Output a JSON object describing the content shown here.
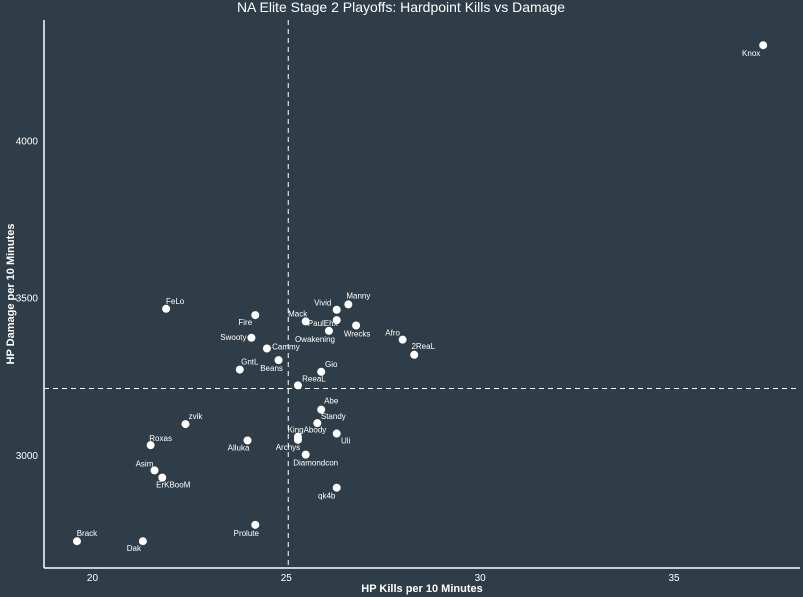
{
  "chart_data": {
    "type": "scatter",
    "title": "NA Elite Stage 2 Playoffs: Hardpoint Kills vs Damage",
    "xlabel": "HP Kills per 10 Minutes",
    "ylabel": "HP Damage per 10 Minutes",
    "xlim": [
      18.75,
      38.25
    ],
    "ylim": [
      2645,
      4385
    ],
    "x_ticks": [
      20,
      25,
      30,
      35
    ],
    "y_ticks": [
      3000,
      3500,
      4000
    ],
    "x_ref_line": 25.05,
    "y_ref_line": 3215,
    "background_color": "#2e3d47",
    "point_color": "#ffffff",
    "points": [
      {
        "label": "Knox",
        "x": 37.3,
        "y": 4305
      },
      {
        "label": "FeLo",
        "x": 21.9,
        "y": 3468
      },
      {
        "label": "Manny",
        "x": 26.6,
        "y": 3482
      },
      {
        "label": "Vivid",
        "x": 26.3,
        "y": 3465
      },
      {
        "label": "Mack",
        "x": 25.5,
        "y": 3428
      },
      {
        "label": "Fire",
        "x": 24.2,
        "y": 3448
      },
      {
        "label": "PaulEhx",
        "x": 26.3,
        "y": 3432
      },
      {
        "label": "Wrecks",
        "x": 26.8,
        "y": 3415
      },
      {
        "label": "Owakening",
        "x": 26.1,
        "y": 3398
      },
      {
        "label": "Swooty",
        "x": 24.1,
        "y": 3376
      },
      {
        "label": "Afro",
        "x": 28.0,
        "y": 3370
      },
      {
        "label": "Cammy",
        "x": 24.5,
        "y": 3342
      },
      {
        "label": "2ReaL",
        "x": 28.3,
        "y": 3322
      },
      {
        "label": "Beans",
        "x": 24.8,
        "y": 3305
      },
      {
        "label": "GntL",
        "x": 23.8,
        "y": 3275
      },
      {
        "label": "Gio",
        "x": 25.9,
        "y": 3268
      },
      {
        "label": "ReeaL",
        "x": 25.3,
        "y": 3225
      },
      {
        "label": "Abe",
        "x": 25.9,
        "y": 3148
      },
      {
        "label": "zvik",
        "x": 22.4,
        "y": 3102
      },
      {
        "label": "Standy",
        "x": 25.8,
        "y": 3105
      },
      {
        "label": "KingAbody",
        "x": 25.3,
        "y": 3062
      },
      {
        "label": "Uli",
        "x": 26.3,
        "y": 3072
      },
      {
        "label": "Alluka",
        "x": 24.0,
        "y": 3050
      },
      {
        "label": "Roxas",
        "x": 21.5,
        "y": 3035
      },
      {
        "label": "Archys",
        "x": 25.3,
        "y": 3052
      },
      {
        "label": "Diamondcon",
        "x": 25.5,
        "y": 3005
      },
      {
        "label": "Asim",
        "x": 21.6,
        "y": 2955
      },
      {
        "label": "ErKBooM",
        "x": 21.8,
        "y": 2932
      },
      {
        "label": "qk4b",
        "x": 26.3,
        "y": 2900
      },
      {
        "label": "Prolute",
        "x": 24.2,
        "y": 2782
      },
      {
        "label": "Brack",
        "x": 19.6,
        "y": 2730
      },
      {
        "label": "Dak",
        "x": 21.3,
        "y": 2730
      }
    ]
  }
}
